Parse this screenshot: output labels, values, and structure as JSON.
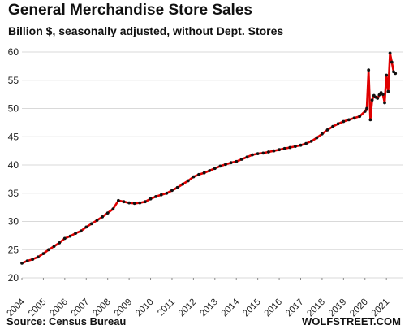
{
  "chart_data": {
    "type": "line",
    "title": "General Merchandise Store Sales",
    "subtitle": "Billion $, seasonally adjusted, without Dept. Stores",
    "source": "Source: Census Bureau",
    "brand": "WOLFSTREET.COM",
    "xlabel": "",
    "ylabel": "",
    "ylim": [
      20,
      60
    ],
    "yticks": [
      20,
      25,
      30,
      35,
      40,
      45,
      50,
      55,
      60
    ],
    "xticks": [
      "2004",
      "2005",
      "2006",
      "2007",
      "2008",
      "2009",
      "2010",
      "2011",
      "2012",
      "2013",
      "2014",
      "2015",
      "2016",
      "2017",
      "2018",
      "2019",
      "2020",
      "2021"
    ],
    "grid": "horizontal",
    "line_color": "#e00000",
    "marker_color": "#111111",
    "series": [
      {
        "x": [
          "2004-01",
          "2004-04",
          "2004-07",
          "2004-10",
          "2005-01",
          "2005-04",
          "2005-07",
          "2005-10",
          "2006-01",
          "2006-04",
          "2006-07",
          "2006-10",
          "2007-01",
          "2007-04",
          "2007-07",
          "2007-10",
          "2008-01",
          "2008-04",
          "2008-07",
          "2008-10",
          "2009-01",
          "2009-04",
          "2009-07",
          "2009-10",
          "2010-01",
          "2010-04",
          "2010-07",
          "2010-10",
          "2011-01",
          "2011-04",
          "2011-07",
          "2011-10",
          "2012-01",
          "2012-04",
          "2012-07",
          "2012-10",
          "2013-01",
          "2013-04",
          "2013-07",
          "2013-10",
          "2014-01",
          "2014-04",
          "2014-07",
          "2014-10",
          "2015-01",
          "2015-04",
          "2015-07",
          "2015-10",
          "2016-01",
          "2016-04",
          "2016-07",
          "2016-10",
          "2017-01",
          "2017-04",
          "2017-07",
          "2017-10",
          "2018-01",
          "2018-04",
          "2018-07",
          "2018-10",
          "2019-01",
          "2019-04",
          "2019-07",
          "2019-10",
          "2020-01",
          "2020-02",
          "2020-03",
          "2020-04",
          "2020-05",
          "2020-06",
          "2020-07",
          "2020-08",
          "2020-09",
          "2020-10",
          "2020-11",
          "2020-12",
          "2021-01",
          "2021-02",
          "2021-03",
          "2021-04",
          "2021-05",
          "2021-06"
        ],
        "values": [
          22.6,
          23.0,
          23.3,
          23.7,
          24.3,
          25.0,
          25.6,
          26.2,
          27.0,
          27.4,
          27.9,
          28.3,
          29.0,
          29.6,
          30.2,
          30.8,
          31.5,
          32.2,
          33.7,
          33.5,
          33.3,
          33.2,
          33.3,
          33.5,
          34.0,
          34.4,
          34.7,
          35.0,
          35.5,
          36.0,
          36.6,
          37.2,
          37.9,
          38.3,
          38.6,
          39.0,
          39.4,
          39.8,
          40.1,
          40.4,
          40.6,
          41.0,
          41.4,
          41.8,
          42.0,
          42.1,
          42.3,
          42.5,
          42.7,
          42.9,
          43.1,
          43.3,
          43.5,
          43.8,
          44.2,
          44.8,
          45.5,
          46.2,
          46.8,
          47.3,
          47.7,
          48.0,
          48.3,
          48.6,
          49.5,
          50.0,
          56.8,
          48.0,
          51.5,
          52.3,
          52.0,
          51.8,
          52.4,
          52.8,
          52.5,
          51.0,
          55.9,
          53.0,
          59.8,
          58.2,
          56.5,
          56.2
        ]
      }
    ]
  }
}
